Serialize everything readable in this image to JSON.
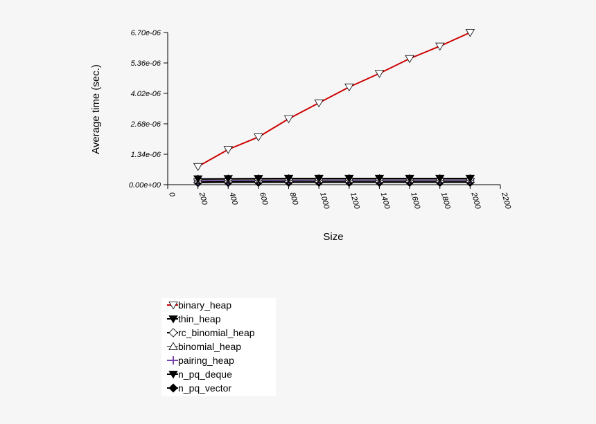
{
  "chart_data": {
    "type": "line",
    "title": "",
    "xlabel": "Size",
    "ylabel": "Average time (sec.)",
    "xlim": [
      0,
      2200
    ],
    "ylim": [
      0,
      6.7e-06
    ],
    "x_ticks": [
      "0",
      "200",
      "400",
      "600",
      "800",
      "1000",
      "1200",
      "1400",
      "1600",
      "1800",
      "2000",
      "2200"
    ],
    "y_ticks": [
      "0.00e+00",
      "1.34e-06",
      "2.68e-06",
      "4.02e-06",
      "5.36e-06",
      "6.70e-06"
    ],
    "x": [
      200,
      400,
      600,
      800,
      1000,
      1200,
      1400,
      1600,
      1800,
      2000
    ],
    "grid": false,
    "legend_position": "below",
    "series": [
      {
        "name": "binary_heap",
        "color": "#cc0000",
        "marker": "triangle-down-open",
        "values": [
          8e-07,
          1.55e-06,
          2.1e-06,
          2.9e-06,
          3.6e-06,
          4.3e-06,
          4.9e-06,
          5.55e-06,
          6.1e-06,
          6.7e-06
        ]
      },
      {
        "name": "thin_heap",
        "color": "#000000",
        "marker": "triangle-down-filled",
        "values": [
          2.6e-07,
          2.7e-07,
          2.75e-07,
          2.8e-07,
          2.8e-07,
          2.8e-07,
          2.8e-07,
          2.8e-07,
          2.8e-07,
          2.8e-07
        ]
      },
      {
        "name": "rc_binomial_heap",
        "color": "#000000",
        "marker": "diamond-open",
        "values": [
          2.4e-07,
          2.5e-07,
          2.55e-07,
          2.6e-07,
          2.6e-07,
          2.6e-07,
          2.6e-07,
          2.6e-07,
          2.6e-07,
          2.6e-07
        ]
      },
      {
        "name": "binomial_heap",
        "color": "#888888",
        "marker": "triangle-up-open",
        "values": [
          2.2e-07,
          2.3e-07,
          2.35e-07,
          2.4e-07,
          2.4e-07,
          2.4e-07,
          2.4e-07,
          2.4e-07,
          2.4e-07,
          2.4e-07
        ]
      },
      {
        "name": "pairing_heap",
        "color": "#7744aa",
        "marker": "plus",
        "values": [
          1.7e-07,
          1.9e-07,
          2e-07,
          2.05e-07,
          2.1e-07,
          2.1e-07,
          2.1e-07,
          2.1e-07,
          2.1e-07,
          2.1e-07
        ]
      },
      {
        "name": "n_pq_deque",
        "color": "#000000",
        "marker": "triangle-down-filled",
        "values": [
          1.3e-07,
          1.4e-07,
          1.45e-07,
          1.5e-07,
          1.5e-07,
          1.5e-07,
          1.5e-07,
          1.5e-07,
          1.5e-07,
          1.5e-07
        ]
      },
      {
        "name": "n_pq_vector",
        "color": "#000000",
        "marker": "diamond-filled",
        "values": [
          9e-08,
          9.5e-08,
          1e-07,
          1e-07,
          1e-07,
          1e-07,
          1e-07,
          1e-07,
          1e-07,
          1e-07
        ]
      }
    ]
  }
}
